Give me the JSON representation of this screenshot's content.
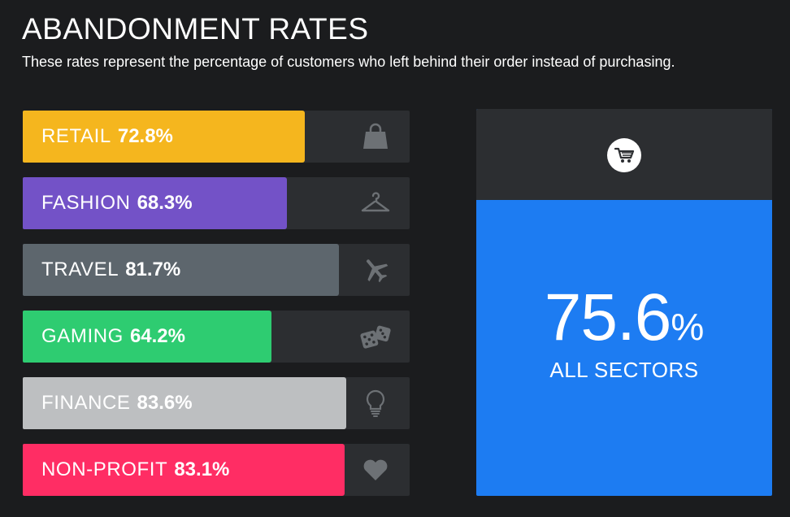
{
  "header": {
    "title": "ABANDONMENT RATES",
    "subtitle": "These rates represent the percentage of customers who left behind their order instead of purchasing."
  },
  "chart_data": {
    "type": "bar",
    "title": "ABANDONMENT RATES",
    "categories": [
      "RETAIL",
      "FASHION",
      "TRAVEL",
      "GAMING",
      "FINANCE",
      "NON-PROFIT"
    ],
    "values": [
      72.8,
      68.3,
      81.7,
      64.2,
      83.6,
      83.1
    ],
    "value_labels": [
      "72.8%",
      "68.3%",
      "81.7%",
      "64.2%",
      "83.6%",
      "83.1%"
    ],
    "colors": [
      "#f5b61e",
      "#7352c7",
      "#5d666d",
      "#2ecc71",
      "#bdbfc1",
      "#ff2d64"
    ],
    "icons": [
      "shopping-bag-icon",
      "hanger-icon",
      "airplane-icon",
      "dice-icon",
      "lightbulb-icon",
      "heart-icon"
    ],
    "xlim": [
      0,
      100
    ]
  },
  "summary": {
    "value": "75.6",
    "unit": "%",
    "label": "ALL SECTORS",
    "icon": "shopping-cart-icon",
    "accent": "#1d7cf2"
  }
}
